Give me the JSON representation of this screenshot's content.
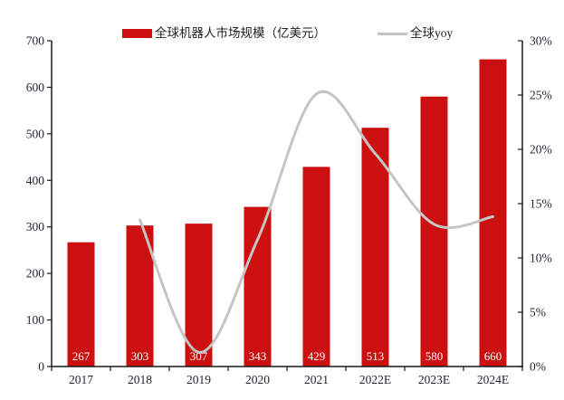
{
  "legend": {
    "series1_label": "全球机器人市场规模（亿美元）",
    "series2_label": "全球yoy"
  },
  "chart_data": {
    "type": "bar",
    "subtype": "bar-with-smooth-line-overlay",
    "title": "",
    "categories": [
      "2017",
      "2018",
      "2019",
      "2020",
      "2021",
      "2022E",
      "2023E",
      "2024E"
    ],
    "series": [
      {
        "name": "全球机器人市场规模（亿美元）",
        "type": "bar",
        "axis": "left",
        "color": "#cc1010",
        "values": [
          267,
          303,
          307,
          343,
          429,
          513,
          580,
          660
        ],
        "data_labels": [
          "267",
          "303",
          "307",
          "343",
          "429",
          "513",
          "580",
          "660"
        ],
        "data_label_color": "#ffffff"
      },
      {
        "name": "全球yoy",
        "type": "line",
        "axis": "right",
        "color": "#c5c5c5",
        "smooth": true,
        "values_pct": [
          null,
          13.5,
          1.3,
          11.7,
          25.1,
          19.6,
          13.1,
          13.8
        ]
      }
    ],
    "left_axis": {
      "min": 0,
      "max": 700,
      "step": 100,
      "tick_labels": [
        "0",
        "100",
        "200",
        "300",
        "400",
        "500",
        "600",
        "700"
      ]
    },
    "right_axis": {
      "min": 0,
      "max": 30,
      "step": 5,
      "format": "percent",
      "tick_labels": [
        "0%",
        "5%",
        "10%",
        "15%",
        "20%",
        "25%",
        "30%"
      ]
    },
    "legend_position": "top",
    "grid": false,
    "axis_color": "#1a1a1a",
    "tick_label_color": "#24272e"
  }
}
